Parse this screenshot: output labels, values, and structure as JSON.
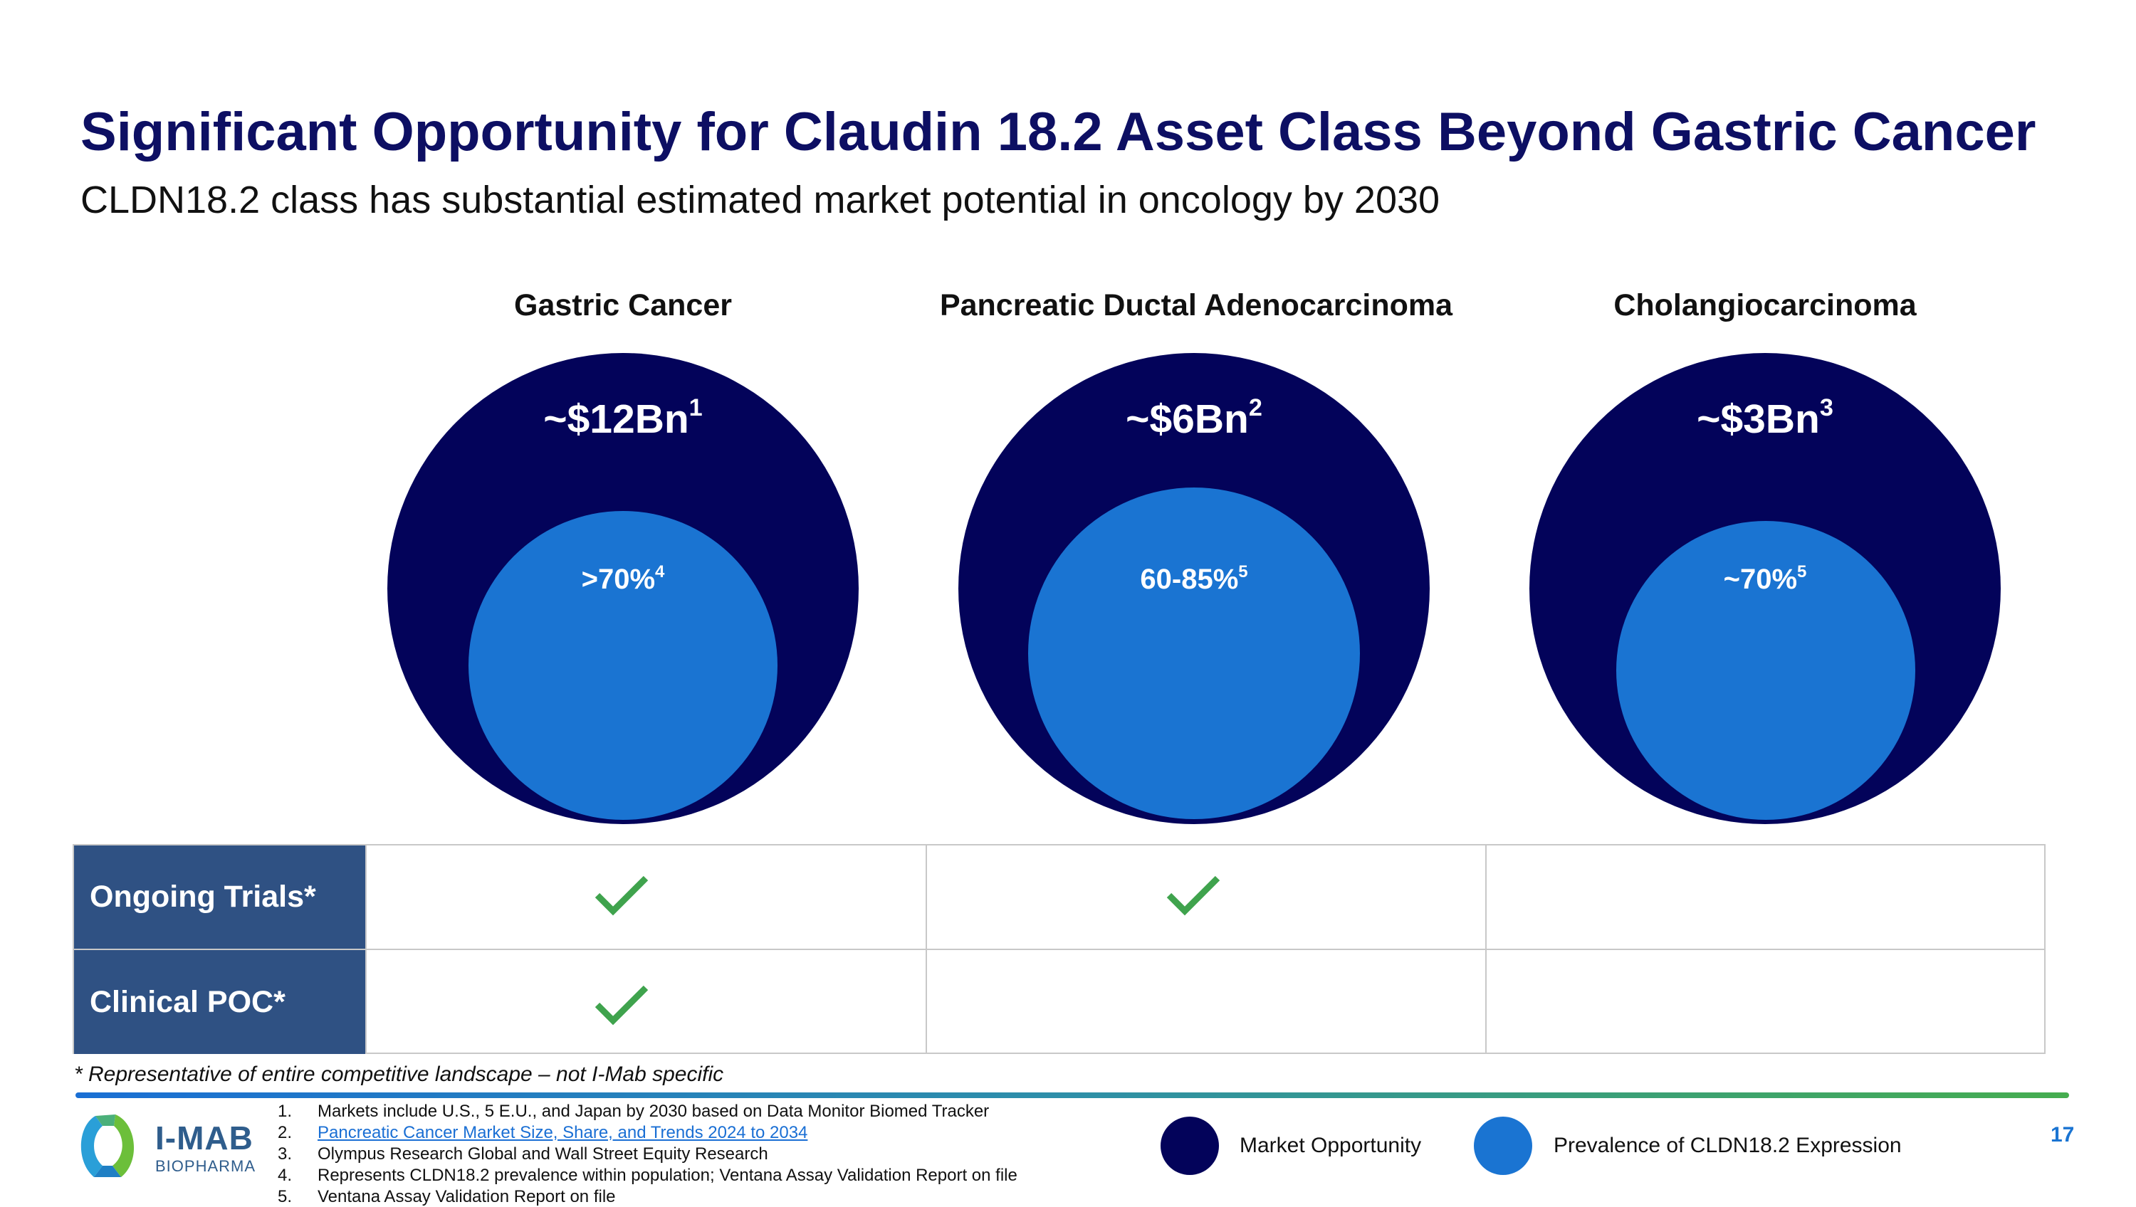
{
  "title": "Significant Opportunity for Claudin 18.2 Asset Class Beyond Gastric Cancer",
  "subtitle": "CLDN18.2 class has substantial estimated market potential in oncology by 2030",
  "columns": [
    {
      "name": "Gastric Cancer",
      "market": "~$12Bn",
      "market_ref": "1",
      "prevalence": ">70%",
      "prevalence_ref": "4"
    },
    {
      "name": "Pancreatic Ductal Adenocarcinoma",
      "market": "~$6Bn",
      "market_ref": "2",
      "prevalence": "60-85%",
      "prevalence_ref": "5"
    },
    {
      "name": "Cholangiocarcinoma",
      "market": "~$3Bn",
      "market_ref": "3",
      "prevalence": "~70%",
      "prevalence_ref": "5"
    }
  ],
  "table": {
    "rows": [
      {
        "label": "Ongoing Trials*",
        "checks": [
          true,
          true,
          false
        ]
      },
      {
        "label": "Clinical POC*",
        "checks": [
          true,
          false,
          false
        ]
      }
    ]
  },
  "note": "* Representative of entire competitive landscape – not I-Mab specific",
  "footnotes": [
    {
      "num": "1.",
      "text": "Markets include U.S., 5 E.U., and Japan by 2030 based on Data Monitor Biomed Tracker"
    },
    {
      "num": "2.",
      "text": "Pancreatic Cancer Market Size, Share, and Trends 2024 to 2034"
    },
    {
      "num": "3.",
      "text": "Olympus Research Global and Wall Street Equity Research"
    },
    {
      "num": "4.",
      "text": "Represents CLDN18.2 prevalence within population; Ventana Assay Validation Report on file"
    },
    {
      "num": "5.",
      "text": "Ventana Assay Validation Report on file"
    }
  ],
  "logo": {
    "name": "I-MAB",
    "tagline": "BIOPHARMA"
  },
  "legend": [
    {
      "label": "Market Opportunity",
      "color": "#03035a"
    },
    {
      "label": "Prevalence of CLDN18.2 Expression",
      "color": "#1a74d2"
    }
  ],
  "page_number": "17",
  "colors": {
    "navy": "#03035a",
    "blue": "#1a74d2",
    "check": "#3fa34d",
    "title": "#0d0f63"
  }
}
